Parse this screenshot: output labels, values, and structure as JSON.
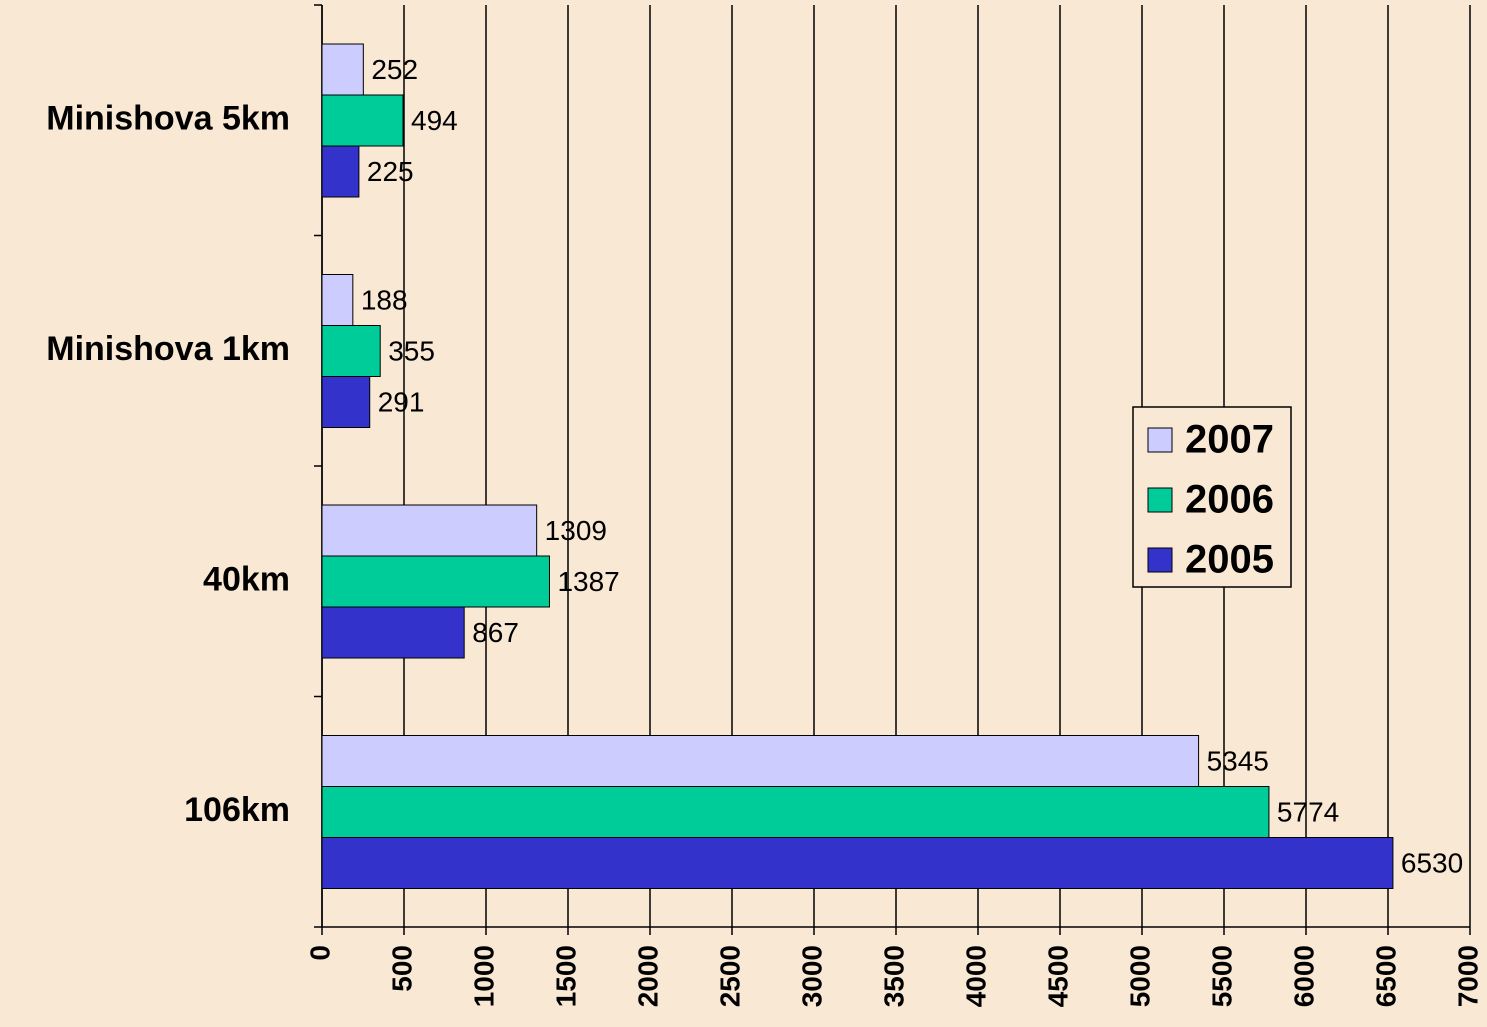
{
  "chart_data": {
    "type": "hbar",
    "categories": [
      "Minishova 5km",
      "Minishova 1km",
      "40km",
      "106km"
    ],
    "series": [
      {
        "name": "2007",
        "color": "#ccccff",
        "values": [
          252,
          188,
          1309,
          5345
        ]
      },
      {
        "name": "2006",
        "color": "#00cc99",
        "values": [
          494,
          355,
          1387,
          5774
        ]
      },
      {
        "name": "2005",
        "color": "#3333cc",
        "values": [
          225,
          291,
          867,
          6530
        ]
      }
    ],
    "xlim": [
      0,
      7000
    ],
    "xticks": [
      0,
      500,
      1000,
      1500,
      2000,
      2500,
      3000,
      3500,
      4000,
      4500,
      5000,
      5500,
      6000,
      6500,
      7000
    ],
    "grid": true,
    "legend": "right"
  }
}
